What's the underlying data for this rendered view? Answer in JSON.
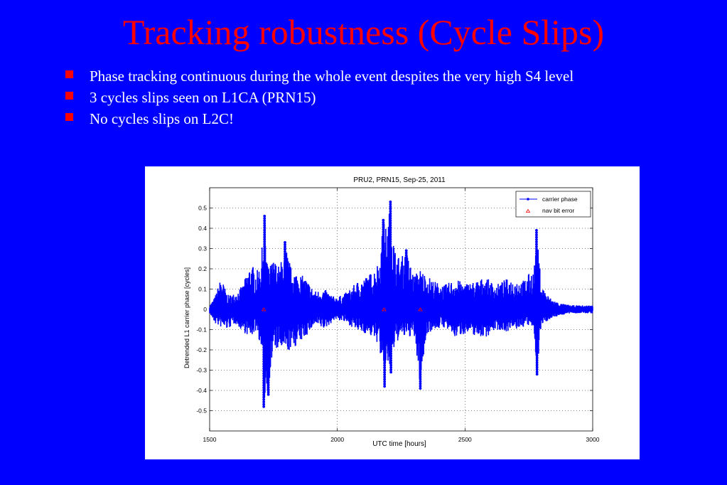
{
  "slide": {
    "title": "Tracking robustness (Cycle Slips)",
    "bullets": [
      "Phase tracking continuous during the whole event despites the very high S4 level",
      "3 cycles slips seen on L1CA (PRN15)",
      "No cycles slips on L2C!"
    ],
    "colors": {
      "background": "#0000ff",
      "title": "#ff0000",
      "text": "#ffffff",
      "bullet_marker": "#ff0000"
    }
  },
  "chart_data": {
    "type": "scatter",
    "title": "PRU2, PRN15, Sep-25, 2011",
    "xlabel": "UTC time [hours]",
    "ylabel": "Detrended L1 carrier phase [cycles]",
    "xlim": [
      1500,
      3000
    ],
    "ylim": [
      -0.6,
      0.6
    ],
    "xticks": [
      1500,
      2000,
      2500,
      3000
    ],
    "yticks": [
      -0.5,
      -0.4,
      -0.3,
      -0.2,
      -0.1,
      0,
      0.1,
      0.2,
      0.3,
      0.4,
      0.5
    ],
    "ytick_labels": [
      "-0.5",
      "-0.4",
      "-0.3",
      "-0.2",
      "-0.1",
      "0",
      "0.1",
      "0.2",
      "0.3",
      "0.4",
      "0.5"
    ],
    "grid": true,
    "legend_position": "top-right",
    "series": [
      {
        "name": "carrier phase",
        "color": "#0000ff",
        "marker": "dot",
        "envelope": [
          {
            "x": 1500,
            "hi": 0.02,
            "lo": -0.02
          },
          {
            "x": 1520,
            "hi": 0.06,
            "lo": -0.07
          },
          {
            "x": 1545,
            "hi": 0.16,
            "lo": -0.09
          },
          {
            "x": 1570,
            "hi": 0.07,
            "lo": -0.1
          },
          {
            "x": 1600,
            "hi": 0.08,
            "lo": -0.07
          },
          {
            "x": 1630,
            "hi": 0.12,
            "lo": -0.11
          },
          {
            "x": 1660,
            "hi": 0.23,
            "lo": -0.14
          },
          {
            "x": 1685,
            "hi": 0.19,
            "lo": -0.1
          },
          {
            "x": 1700,
            "hi": 0.23,
            "lo": -0.19
          },
          {
            "x": 1715,
            "hi": 0.46,
            "lo": -0.48
          },
          {
            "x": 1730,
            "hi": 0.2,
            "lo": -0.42
          },
          {
            "x": 1750,
            "hi": 0.25,
            "lo": -0.2
          },
          {
            "x": 1775,
            "hi": 0.21,
            "lo": -0.2
          },
          {
            "x": 1795,
            "hi": 0.33,
            "lo": -0.22
          },
          {
            "x": 1820,
            "hi": 0.2,
            "lo": -0.2
          },
          {
            "x": 1850,
            "hi": 0.18,
            "lo": -0.17
          },
          {
            "x": 1880,
            "hi": 0.15,
            "lo": -0.13
          },
          {
            "x": 1910,
            "hi": 0.09,
            "lo": -0.08
          },
          {
            "x": 1950,
            "hi": 0.1,
            "lo": -0.1
          },
          {
            "x": 1990,
            "hi": 0.06,
            "lo": -0.05
          },
          {
            "x": 2020,
            "hi": 0.07,
            "lo": -0.06
          },
          {
            "x": 2050,
            "hi": 0.1,
            "lo": -0.08
          },
          {
            "x": 2080,
            "hi": 0.14,
            "lo": -0.11
          },
          {
            "x": 2110,
            "hi": 0.16,
            "lo": -0.12
          },
          {
            "x": 2140,
            "hi": 0.19,
            "lo": -0.14
          },
          {
            "x": 2165,
            "hi": 0.25,
            "lo": -0.18
          },
          {
            "x": 2180,
            "hi": 0.44,
            "lo": -0.38
          },
          {
            "x": 2195,
            "hi": 0.4,
            "lo": -0.28
          },
          {
            "x": 2208,
            "hi": 0.53,
            "lo": -0.31
          },
          {
            "x": 2225,
            "hi": 0.3,
            "lo": -0.18
          },
          {
            "x": 2245,
            "hi": 0.25,
            "lo": -0.14
          },
          {
            "x": 2270,
            "hi": 0.29,
            "lo": -0.14
          },
          {
            "x": 2300,
            "hi": 0.17,
            "lo": -0.13
          },
          {
            "x": 2325,
            "hi": 0.2,
            "lo": -0.39
          },
          {
            "x": 2350,
            "hi": 0.17,
            "lo": -0.12
          },
          {
            "x": 2380,
            "hi": 0.14,
            "lo": -0.1
          },
          {
            "x": 2420,
            "hi": 0.12,
            "lo": -0.09
          },
          {
            "x": 2460,
            "hi": 0.15,
            "lo": -0.14
          },
          {
            "x": 2500,
            "hi": 0.13,
            "lo": -0.12
          },
          {
            "x": 2540,
            "hi": 0.14,
            "lo": -0.13
          },
          {
            "x": 2580,
            "hi": 0.16,
            "lo": -0.14
          },
          {
            "x": 2620,
            "hi": 0.12,
            "lo": -0.1
          },
          {
            "x": 2660,
            "hi": 0.15,
            "lo": -0.11
          },
          {
            "x": 2700,
            "hi": 0.15,
            "lo": -0.1
          },
          {
            "x": 2725,
            "hi": 0.14,
            "lo": -0.09
          },
          {
            "x": 2745,
            "hi": 0.17,
            "lo": -0.08
          },
          {
            "x": 2770,
            "hi": 0.2,
            "lo": -0.1
          },
          {
            "x": 2780,
            "hi": 0.39,
            "lo": -0.32
          },
          {
            "x": 2800,
            "hi": 0.12,
            "lo": -0.08
          },
          {
            "x": 2830,
            "hi": 0.06,
            "lo": -0.05
          },
          {
            "x": 2870,
            "hi": 0.03,
            "lo": -0.03
          },
          {
            "x": 2920,
            "hi": 0.02,
            "lo": -0.02
          },
          {
            "x": 3000,
            "hi": 0.02,
            "lo": -0.02
          }
        ],
        "spikes": [
          {
            "x": 1715,
            "y": 0.46
          },
          {
            "x": 1712,
            "y": -0.48
          },
          {
            "x": 1730,
            "y": -0.42
          },
          {
            "x": 1795,
            "y": 0.33
          },
          {
            "x": 2180,
            "y": 0.44
          },
          {
            "x": 2185,
            "y": -0.38
          },
          {
            "x": 2208,
            "y": 0.53
          },
          {
            "x": 2210,
            "y": -0.31
          },
          {
            "x": 2270,
            "y": 0.29
          },
          {
            "x": 2325,
            "y": -0.39
          },
          {
            "x": 2780,
            "y": 0.39
          },
          {
            "x": 2782,
            "y": -0.32
          }
        ]
      },
      {
        "name": "nav bit error",
        "color": "#ff0000",
        "marker": "triangle",
        "points": [
          {
            "x": 1712,
            "y": 0.0
          },
          {
            "x": 2183,
            "y": 0.0
          },
          {
            "x": 2325,
            "y": 0.0
          }
        ]
      }
    ]
  }
}
